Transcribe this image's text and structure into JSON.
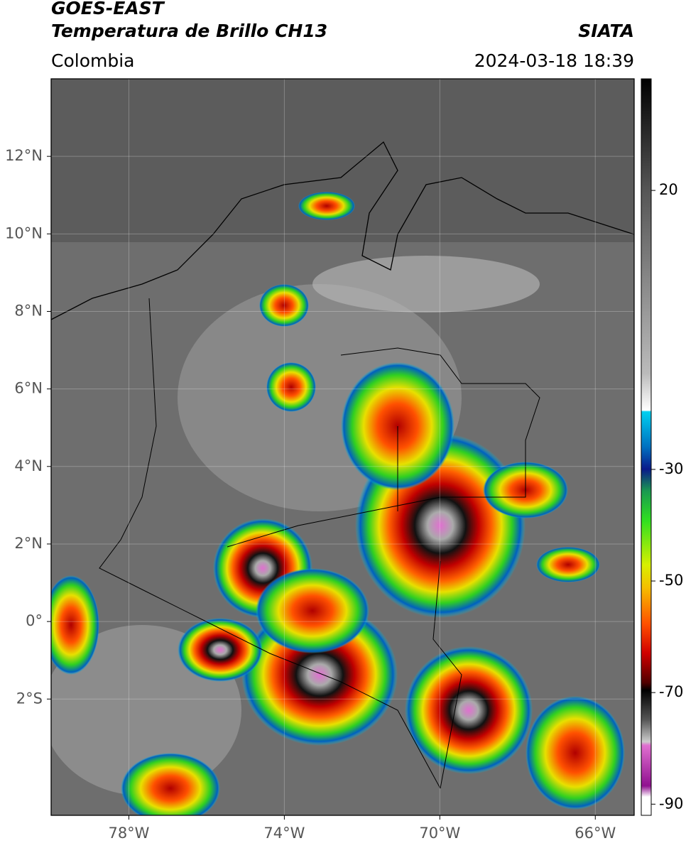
{
  "header": {
    "title": "GOES-EAST",
    "subtitle": "Temperatura de Brillo CH13",
    "source": "SIATA",
    "region": "Colombia",
    "timestamp": "2024-03-18 18:39"
  },
  "map": {
    "lon_range": [
      -80,
      -65
    ],
    "lat_range": [
      -5,
      14
    ],
    "grid": true,
    "lon_ticks": [
      {
        "value": -78,
        "label": "78°W"
      },
      {
        "value": -74,
        "label": "74°W"
      },
      {
        "value": -70,
        "label": "70°W"
      },
      {
        "value": -66,
        "label": "66°W"
      }
    ],
    "lat_ticks": [
      {
        "value": 12,
        "label": "12°N"
      },
      {
        "value": 10,
        "label": "10°N"
      },
      {
        "value": 8,
        "label": "8°N"
      },
      {
        "value": 6,
        "label": "6°N"
      },
      {
        "value": 4,
        "label": "4°N"
      },
      {
        "value": 2,
        "label": "2°N"
      },
      {
        "value": 0,
        "label": "0°"
      },
      {
        "value": -2,
        "label": "2°S"
      }
    ]
  },
  "colorbar": {
    "range": [
      -92,
      40
    ],
    "ticks": [
      20,
      -30,
      -50,
      -70,
      -90
    ]
  }
}
